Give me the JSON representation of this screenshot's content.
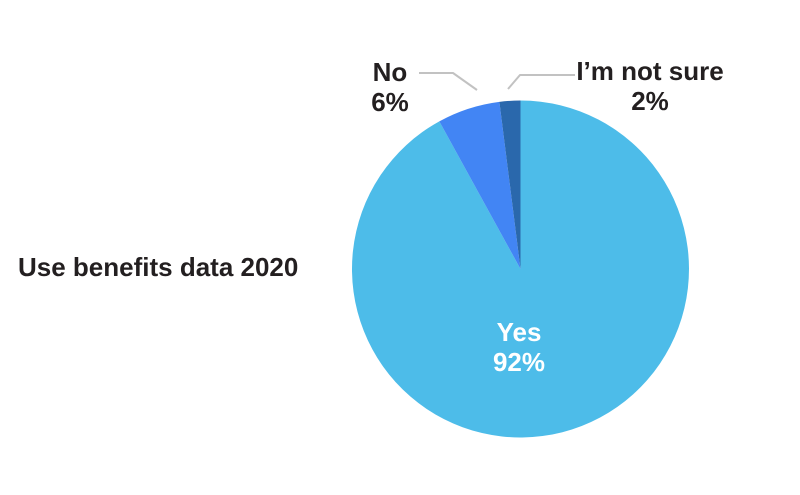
{
  "title": {
    "text": "Use benefits data 2020"
  },
  "chart_data": {
    "type": "pie",
    "title": "Use benefits data 2020",
    "unit": "%",
    "categories": [
      "Yes",
      "No",
      "I’m not sure"
    ],
    "values": [
      92,
      6,
      2
    ],
    "slices": [
      {
        "label": "Yes",
        "value": 92,
        "display": "92%",
        "color": "#4DBCE9",
        "text_color": "#FFFFFF",
        "label_position": "inside"
      },
      {
        "label": "No",
        "value": 6,
        "display": "6%",
        "color": "#4285F4",
        "text_color": "#231F20",
        "label_position": "callout-left"
      },
      {
        "label": "I’m not sure",
        "value": 2,
        "display": "2%",
        "color": "#2A68AC",
        "text_color": "#231F20",
        "label_position": "callout-right"
      }
    ],
    "start_angle_deg": 0,
    "direction": "clockwise",
    "legend_position": "none",
    "label_style": "callout-with-leader-lines"
  },
  "labels": {
    "yes": {
      "line1": "Yes",
      "line2": "92%"
    },
    "no": {
      "line1": "No",
      "line2": "6%"
    },
    "not_sure": {
      "line1": "I’m not sure",
      "line2": "2%"
    }
  },
  "style": {
    "text_color": "#231F20",
    "leader_line_color": "#C2C2C2",
    "background": "#FFFFFF"
  }
}
